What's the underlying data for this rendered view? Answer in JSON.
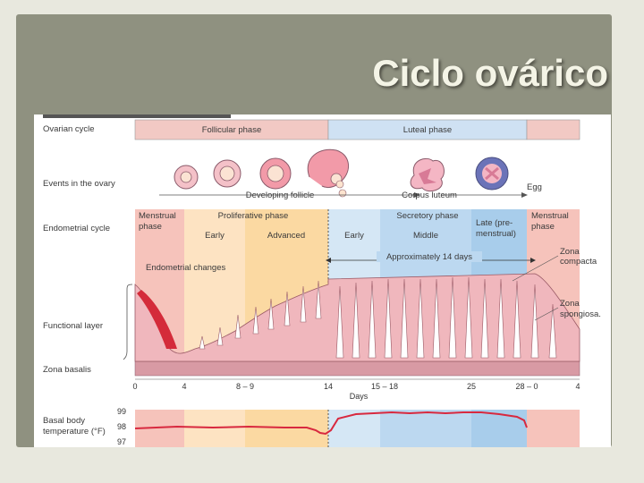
{
  "slide": {
    "title": "Ciclo ovárico"
  },
  "figure": {
    "row_labels": {
      "ovarian_cycle": "Ovarian cycle",
      "events": "Events in the ovary",
      "endometrial_cycle": "Endometrial cycle",
      "functional_layer": "Functional layer",
      "zona_basalis": "Zona basalis",
      "basal_temp": "Basal body",
      "basal_temp2": "temperature (°F)"
    },
    "ovarian_phases": {
      "follicular": "Follicular phase",
      "luteal": "Luteal phase"
    },
    "events": {
      "developing": "Developing follicle",
      "corpus": "Corpus luteum",
      "egg": "Egg"
    },
    "endometrial_phases": {
      "menstrual_a": "Menstrual",
      "menstrual_b": "phase",
      "proliferative": "Proliferative phase",
      "early": "Early",
      "advanced": "Advanced",
      "secretory": "Secretory phase",
      "sec_early": "Early",
      "middle": "Middle",
      "late_a": "Late (pre-",
      "late_b": "menstrual)",
      "menstrual2_a": "Menstrual",
      "menstrual2_b": "phase"
    },
    "annotations": {
      "changes": "Endometrial changes",
      "approx": "Approximately 14 days",
      "compacta_a": "Zona",
      "compacta_b": "compacta",
      "spongiosa_a": "Zona",
      "spongiosa_b": "spongiosa."
    },
    "day_ticks": [
      "0",
      "4",
      "8 – 9",
      "14",
      "15 – 18",
      "25",
      "28 – 0",
      "4"
    ],
    "days_label": "Days",
    "temp_ticks": [
      "99",
      "98",
      "97"
    ],
    "colors": {
      "menstrual": "#f6c3bb",
      "proliferative_early": "#fde3c2",
      "proliferative_adv": "#fbd9a2",
      "secretory_early": "#d5e7f5",
      "secretory_mid": "#bcd8f0",
      "secretory_late": "#a8cdeb",
      "follicular_bar": "#f2c9c4",
      "luteal_bar": "#cfe1f3",
      "temp_line": "#d8293f"
    }
  }
}
